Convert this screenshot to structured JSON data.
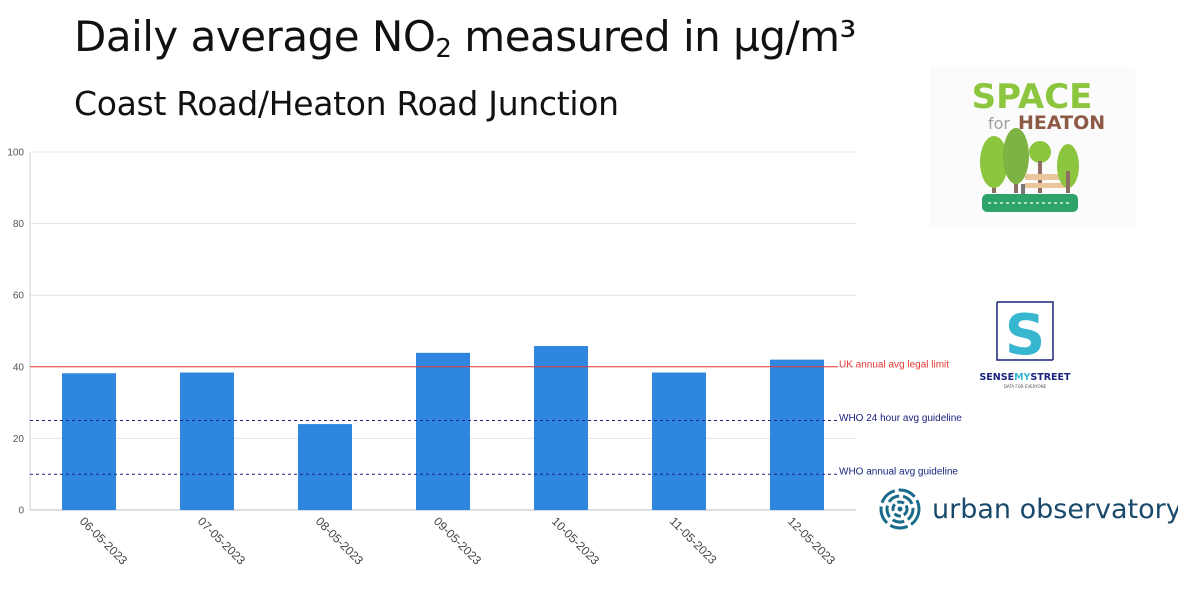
{
  "header": {
    "title_main": "Daily average NO",
    "title_sub": "2",
    "title_rest": " measured in µg/m³",
    "subtitle": "Coast Road/Heaton Road Junction"
  },
  "chart_data": {
    "type": "bar",
    "categories": [
      "06-05-2023",
      "07-05-2023",
      "08-05-2023",
      "09-05-2023",
      "10-05-2023",
      "11-05-2023",
      "12-05-2023"
    ],
    "values": [
      38.2,
      38.4,
      24.0,
      43.9,
      45.8,
      38.4,
      42.0
    ],
    "ylim": [
      0,
      100
    ],
    "yticks": [
      0,
      20,
      40,
      60,
      80,
      100
    ],
    "grid": true,
    "bar_color": "#2e86de",
    "reference_lines": [
      {
        "label": "UK annual avg legal limit",
        "value": 40,
        "color": "#e53935",
        "style": "solid"
      },
      {
        "label": "WHO 24 hour avg guideline",
        "value": 25,
        "color": "#1a237e",
        "style": "dashed"
      },
      {
        "label": "WHO annual avg guideline",
        "value": 10,
        "color": "#1a237e",
        "style": "dashed"
      }
    ]
  },
  "logos": {
    "space_for_heaton": {
      "line1": "SPACE",
      "line2_a": "for",
      "line2_b": "HEATON"
    },
    "sense_my_street": {
      "letter": "S",
      "name_a": "SENSE",
      "name_b": "MY",
      "name_c": "STREET",
      "tagline": "DATA FOR EVERYONE"
    },
    "urban_observatory": {
      "name": "urban observatory"
    }
  }
}
